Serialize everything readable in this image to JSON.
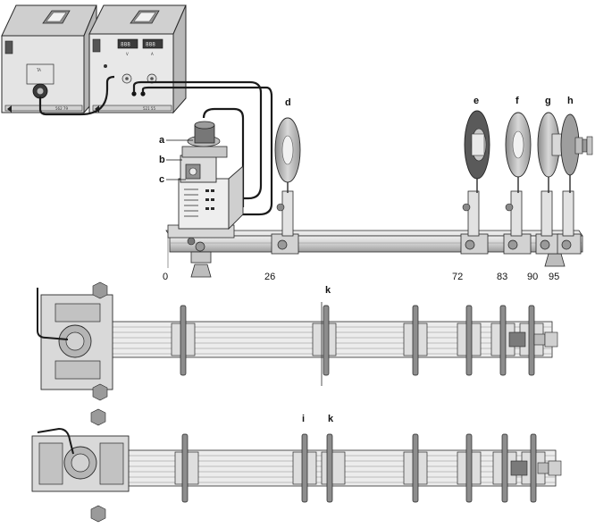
{
  "colors": {
    "housing": "#d6d6d6",
    "housing_dark": "#9a9a9a",
    "outline": "#2a2a2a",
    "cable": "#1a1a1a",
    "disc": "#c4c4c4",
    "disc_dark": "#707070",
    "rail": "#cfcfcf",
    "display": "#3a3a3a"
  },
  "equipment": {
    "psu_left_model": "562 79",
    "psu_left_fuse": "TA",
    "psu_right_model": "521 55",
    "psu_right_display_v": "888",
    "psu_right_display_a": "888",
    "psu_right_label_v": "V",
    "psu_right_label_a": "A"
  },
  "component_labels": [
    "a",
    "b",
    "c",
    "d",
    "e",
    "f",
    "g",
    "h"
  ],
  "positions": [
    "0",
    "26",
    "72",
    "83",
    "90",
    "95"
  ],
  "top_view_labels": {
    "view1_k": "k",
    "view2_i": "i",
    "view2_k": "k"
  }
}
